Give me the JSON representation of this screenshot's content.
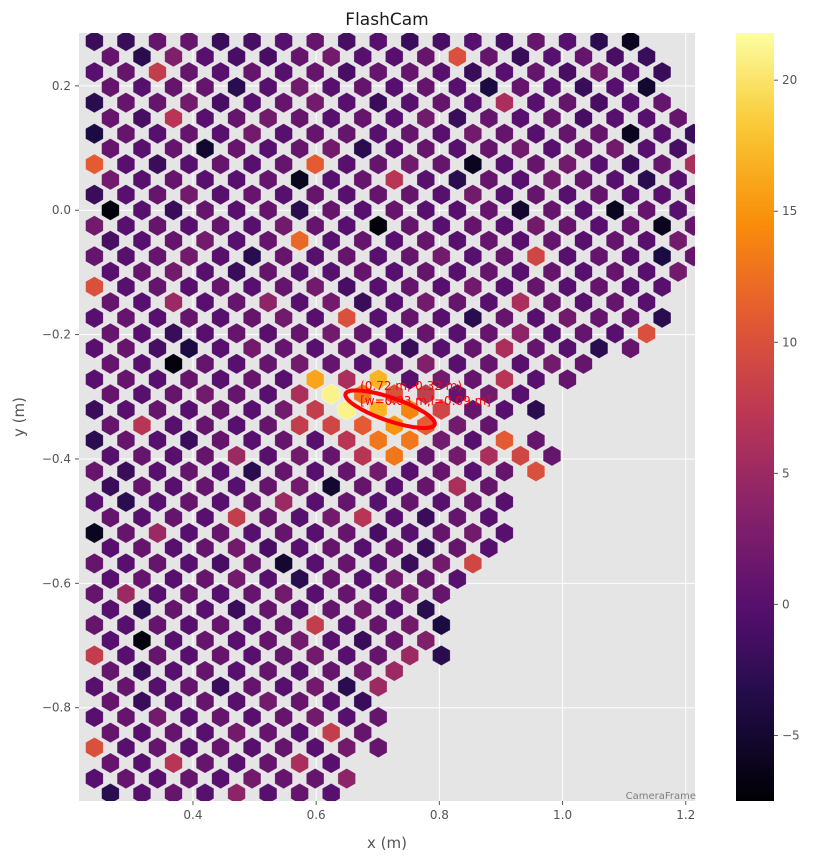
{
  "chart_data": {
    "type": "heatmap",
    "title": "FlashCam",
    "xlabel": "x  (m)",
    "ylabel": "y  (m)",
    "frame_label": "CameraFrame",
    "xlim": [
      0.215,
      1.215
    ],
    "ylim": [
      -0.95,
      0.285
    ],
    "x_ticks": [
      0.4,
      0.6,
      0.8,
      1.0,
      1.2
    ],
    "x_tick_labels": [
      "0.4",
      "0.6",
      "0.8",
      "1.0",
      "1.2"
    ],
    "y_ticks": [
      0.2,
      0.0,
      -0.2,
      -0.4,
      -0.6,
      -0.8
    ],
    "y_tick_labels": [
      "0.2",
      "0.0",
      "−0.2",
      "−0.4",
      "−0.6",
      "−0.8"
    ],
    "colorbar": {
      "colormap": "inferno",
      "range": [
        -7.5,
        21.8
      ],
      "ticks": [
        -5,
        0,
        5,
        10,
        15,
        20
      ],
      "tick_labels": [
        "−5",
        "0",
        "5",
        "10",
        "15",
        "20"
      ]
    },
    "grid": true,
    "background_color": "#e5e5e5",
    "ellipse": {
      "center": [
        0.72,
        -0.32
      ],
      "width_m": 0.03,
      "length_m": 0.09,
      "angle_deg": -19,
      "color": "#ff0000",
      "label_line1": "(0.72 m,-0.32 m)",
      "label_line2": "[w=0.03 m,l=0.09 m]"
    },
    "pixels": {
      "pitch_x": 0.0512,
      "pitch_y": 0.0247,
      "rows": [
        {
          "y": 0.272,
          "x0": 0.24,
          "values": [
            -2,
            -2,
            1,
            1,
            -2,
            -1,
            0,
            1,
            -1,
            0,
            -2,
            -1,
            0,
            -1,
            1,
            0,
            -3,
            -6
          ]
        },
        {
          "y": 0.247,
          "x0": 0.266,
          "values": [
            1,
            -3,
            3,
            0,
            -1,
            -1,
            1,
            2,
            0,
            0,
            1,
            10,
            1,
            -2,
            0,
            1,
            -1,
            -2
          ]
        },
        {
          "y": 0.222,
          "x0": 0.24,
          "values": [
            0,
            1,
            8,
            1,
            0,
            1,
            0,
            1,
            -1,
            1,
            1,
            0,
            -2,
            0,
            1,
            -1,
            2,
            0,
            -2
          ]
        },
        {
          "y": 0.198,
          "x0": 0.266,
          "values": [
            1,
            0,
            1,
            1,
            -3,
            0,
            2,
            0,
            1,
            0,
            1,
            0,
            -4,
            1,
            0,
            -2,
            0,
            -5
          ]
        },
        {
          "y": 0.173,
          "x0": 0.24,
          "values": [
            -3,
            1,
            1,
            2,
            -1,
            0,
            1,
            2,
            0,
            -2,
            0,
            1,
            0,
            6,
            0,
            1,
            -1,
            0,
            1
          ]
        },
        {
          "y": 0.148,
          "x0": 0.266,
          "values": [
            1,
            -1,
            7,
            0,
            1,
            2,
            1,
            0,
            1,
            0,
            2,
            -2,
            1,
            0,
            1,
            -1,
            0,
            0,
            1
          ]
        },
        {
          "y": 0.123,
          "x0": 0.24,
          "values": [
            -4,
            1,
            0,
            1,
            0,
            2,
            0,
            1,
            1,
            0,
            1,
            0,
            2,
            1,
            0,
            1,
            1,
            -6,
            0,
            -2
          ]
        },
        {
          "y": 0.099,
          "x0": 0.266,
          "values": [
            1,
            0,
            1,
            -5,
            1,
            0,
            1,
            2,
            -3,
            0,
            1,
            0,
            1,
            2,
            0,
            1,
            2,
            0,
            -1
          ]
        },
        {
          "y": 0.074,
          "x0": 0.24,
          "values": [
            11,
            0,
            -2,
            0,
            1,
            0,
            1,
            11,
            0,
            1,
            2,
            1,
            -6,
            0,
            1,
            2,
            0,
            -2,
            1,
            6
          ]
        },
        {
          "y": 0.049,
          "x0": 0.266,
          "values": [
            2,
            0,
            1,
            0,
            0,
            1,
            -6,
            0,
            1,
            7,
            0,
            -3,
            1,
            0,
            2,
            1,
            0,
            -3,
            0,
            8
          ]
        },
        {
          "y": 0.025,
          "x0": 0.24,
          "values": [
            -2,
            0,
            1,
            2,
            0,
            1,
            0,
            1,
            0,
            1,
            1,
            0,
            2,
            0,
            1,
            0,
            1,
            0,
            0,
            1
          ]
        },
        {
          "y": 0.0,
          "x0": 0.266,
          "values": [
            -7,
            0,
            -2,
            1,
            0,
            1,
            -3,
            1,
            0,
            1,
            0,
            0,
            1,
            -5,
            1,
            0,
            -6,
            1,
            0,
            0
          ]
        },
        {
          "y": -0.025,
          "x0": 0.24,
          "values": [
            2,
            0,
            1,
            0,
            1,
            0,
            2,
            1,
            0,
            -7,
            1,
            0,
            1,
            0,
            2,
            1,
            0,
            1,
            -6,
            1,
            -2
          ]
        },
        {
          "y": -0.049,
          "x0": 0.266,
          "values": [
            -1,
            0,
            1,
            2,
            0,
            1,
            12,
            0,
            1,
            0,
            1,
            0,
            1,
            0,
            1,
            0,
            1,
            0,
            2
          ]
        },
        {
          "y": -0.074,
          "x0": 0.24,
          "values": [
            1,
            0,
            1,
            2,
            0,
            -3,
            1,
            0,
            1,
            0,
            1,
            2,
            0,
            1,
            9,
            0,
            1,
            0,
            -4,
            1
          ]
        },
        {
          "y": -0.099,
          "x0": 0.266,
          "values": [
            0,
            1,
            2,
            0,
            -2,
            1,
            0,
            0,
            1,
            0,
            1,
            0,
            1,
            0,
            1,
            0,
            1,
            0,
            2
          ]
        },
        {
          "y": -0.123,
          "x0": 0.24,
          "values": [
            10,
            0,
            1,
            0,
            1,
            0,
            1,
            2,
            -1,
            0,
            1,
            0,
            2,
            0,
            1,
            0,
            1,
            0,
            0
          ]
        },
        {
          "y": -0.148,
          "x0": 0.266,
          "values": [
            1,
            0,
            5,
            0,
            1,
            4,
            0,
            2,
            -2,
            0,
            2,
            1,
            0,
            6,
            1,
            0,
            1,
            0
          ]
        },
        {
          "y": -0.173,
          "x0": 0.24,
          "values": [
            0,
            1,
            0,
            1,
            0,
            1,
            2,
            0,
            10,
            0,
            1,
            0,
            -3,
            1,
            0,
            2,
            1,
            1,
            -3
          ]
        },
        {
          "y": -0.198,
          "x0": 0.266,
          "values": [
            1,
            0,
            -2,
            0,
            1,
            0,
            1,
            2,
            1,
            0,
            1,
            0,
            1,
            4,
            0,
            1,
            0,
            10
          ]
        },
        {
          "y": -0.222,
          "x0": 0.24,
          "values": [
            0,
            1,
            -1,
            -4,
            0,
            2,
            1,
            0,
            1,
            0,
            -2,
            0,
            1,
            6,
            1,
            0,
            -3,
            1
          ]
        },
        {
          "y": -0.247,
          "x0": 0.266,
          "values": [
            1,
            0,
            -7,
            1,
            0,
            1,
            2,
            1,
            0,
            1,
            3,
            0,
            1,
            0,
            2,
            1
          ]
        },
        {
          "y": -0.272,
          "x0": 0.24,
          "values": [
            0,
            1,
            0,
            1,
            0,
            1,
            0,
            16,
            6,
            17,
            0,
            2,
            1,
            7,
            0,
            1
          ]
        },
        {
          "y": -0.296,
          "x0": 0.266,
          "values": [
            1,
            0,
            1,
            2,
            1,
            0,
            6,
            21,
            13,
            10,
            8,
            1,
            2,
            0
          ]
        },
        {
          "y": -0.321,
          "x0": 0.24,
          "values": [
            -2,
            0,
            1,
            0,
            1,
            0,
            2,
            8,
            21,
            17,
            14,
            9,
            1,
            0,
            -3
          ]
        },
        {
          "y": -0.346,
          "x0": 0.266,
          "values": [
            1,
            7,
            0,
            1,
            0,
            1,
            8,
            9,
            11,
            15,
            11,
            2,
            1
          ]
        },
        {
          "y": -0.37,
          "x0": 0.24,
          "values": [
            -3,
            1,
            0,
            -2,
            1,
            0,
            1,
            0,
            7,
            13,
            13,
            2,
            0,
            11,
            1
          ]
        },
        {
          "y": -0.395,
          "x0": 0.266,
          "values": [
            0,
            1,
            0,
            1,
            5,
            0,
            2,
            1,
            7,
            13,
            1,
            2,
            6,
            9,
            1
          ]
        },
        {
          "y": -0.42,
          "x0": 0.24,
          "values": [
            1,
            -2,
            0,
            1,
            0,
            -3,
            1,
            0,
            1,
            2,
            0,
            1,
            0,
            1,
            10
          ]
        },
        {
          "y": -0.444,
          "x0": 0.266,
          "values": [
            -2,
            1,
            0,
            1,
            0,
            1,
            2,
            -5,
            1,
            0,
            1,
            6,
            1
          ]
        },
        {
          "y": -0.469,
          "x0": 0.24,
          "values": [
            0,
            -3,
            0,
            1,
            0,
            1,
            5,
            0,
            1,
            0,
            1,
            0,
            1,
            0
          ]
        },
        {
          "y": -0.494,
          "x0": 0.266,
          "values": [
            1,
            0,
            1,
            0,
            8,
            1,
            0,
            2,
            7,
            0,
            -2,
            1,
            0
          ]
        },
        {
          "y": -0.519,
          "x0": 0.24,
          "values": [
            -6,
            1,
            5,
            0,
            1,
            0,
            1,
            0,
            1,
            -1,
            0,
            1,
            2,
            0
          ]
        },
        {
          "y": -0.543,
          "x0": 0.266,
          "values": [
            0,
            1,
            0,
            1,
            2,
            -1,
            0,
            1,
            0,
            1,
            -2,
            1,
            0
          ]
        },
        {
          "y": -0.568,
          "x0": 0.24,
          "values": [
            1,
            0,
            1,
            0,
            -1,
            1,
            -5,
            0,
            1,
            0,
            -2,
            2,
            9
          ]
        },
        {
          "y": -0.593,
          "x0": 0.266,
          "values": [
            0,
            1,
            0,
            1,
            2,
            0,
            -3,
            1,
            0,
            2,
            1,
            0
          ]
        },
        {
          "y": -0.617,
          "x0": 0.24,
          "values": [
            1,
            5,
            0,
            1,
            0,
            1,
            2,
            0,
            1,
            0,
            2,
            1
          ]
        },
        {
          "y": -0.642,
          "x0": 0.266,
          "values": [
            0,
            -3,
            1,
            0,
            -2,
            1,
            0,
            1,
            2,
            0,
            -3
          ]
        },
        {
          "y": -0.667,
          "x0": 0.24,
          "values": [
            1,
            0,
            1,
            0,
            1,
            0,
            1,
            8,
            0,
            1,
            2,
            -4
          ]
        },
        {
          "y": -0.692,
          "x0": 0.266,
          "values": [
            0,
            -7,
            0,
            1,
            0,
            1,
            2,
            0,
            -2,
            1,
            3
          ]
        },
        {
          "y": -0.716,
          "x0": 0.24,
          "values": [
            8,
            0,
            1,
            0,
            1,
            0,
            1,
            2,
            0,
            1,
            5,
            -3
          ]
        },
        {
          "y": -0.741,
          "x0": 0.266,
          "values": [
            1,
            -2,
            0,
            1,
            0,
            1,
            0,
            1,
            2,
            5
          ]
        },
        {
          "y": -0.766,
          "x0": 0.24,
          "values": [
            0,
            1,
            0,
            1,
            -2,
            1,
            0,
            2,
            -3,
            5
          ]
        },
        {
          "y": -0.79,
          "x0": 0.266,
          "values": [
            1,
            -2,
            0,
            1,
            0,
            2,
            1,
            0,
            -2
          ]
        },
        {
          "y": -0.815,
          "x0": 0.24,
          "values": [
            0,
            1,
            2,
            0,
            1,
            0,
            1,
            2,
            0,
            1
          ]
        },
        {
          "y": -0.84,
          "x0": 0.266,
          "values": [
            1,
            0,
            1,
            0,
            2,
            1,
            0,
            8,
            1
          ]
        },
        {
          "y": -0.864,
          "x0": 0.24,
          "values": [
            10,
            0,
            1,
            0,
            1,
            0,
            1,
            0,
            2,
            1
          ]
        },
        {
          "y": -0.889,
          "x0": 0.266,
          "values": [
            1,
            0,
            7,
            1,
            0,
            1,
            6,
            0
          ]
        },
        {
          "y": -0.914,
          "x0": 0.24,
          "values": [
            0,
            1,
            0,
            1,
            0,
            2,
            1,
            1,
            4
          ]
        },
        {
          "y": -0.938,
          "x0": 0.266,
          "values": [
            -3,
            0,
            1,
            0,
            4,
            0,
            1,
            0
          ]
        }
      ]
    }
  }
}
